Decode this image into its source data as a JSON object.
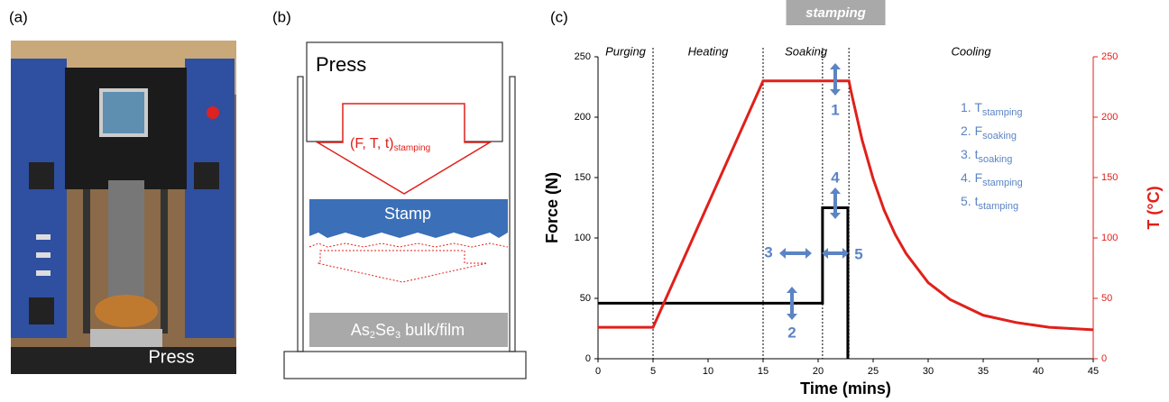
{
  "panel_a": {
    "label": "(a)",
    "caption": "Press"
  },
  "panel_b": {
    "label": "(b)",
    "press": "Press",
    "parameters": {
      "main": "(F, T, t)",
      "sub": "stamping"
    },
    "stamp": "Stamp",
    "sample": [
      "As",
      "2",
      "Se",
      "3",
      " bulk/film"
    ]
  },
  "panel_c": {
    "label": "(c)"
  },
  "chart_data": {
    "type": "line",
    "xlabel": "Time (mins)",
    "ylabel": "Force (N)",
    "y2label": "T (°C)",
    "xlim": [
      0,
      45
    ],
    "xticks": [
      0,
      5,
      10,
      15,
      20,
      25,
      30,
      35,
      40,
      45
    ],
    "ylim": [
      0,
      250
    ],
    "yticks": [
      0,
      50,
      100,
      150,
      200,
      250
    ],
    "y2lim": [
      0,
      250
    ],
    "y2ticks": [
      0,
      50,
      100,
      150,
      200,
      250
    ],
    "series": [
      {
        "color": "#000000",
        "x": [
          0,
          20.4,
          20.4,
          22.7,
          22.7
        ],
        "values": [
          46,
          46,
          125,
          125,
          0
        ]
      },
      {
        "color": "#e0201b",
        "axis": "y2",
        "x": [
          0,
          5,
          15,
          22.8,
          23,
          24,
          25,
          26,
          27,
          28,
          30,
          32,
          35,
          38,
          41,
          45
        ],
        "values": [
          26,
          26,
          230,
          230,
          221,
          181,
          149,
          123,
          103,
          87,
          63,
          49,
          36,
          30,
          26,
          24
        ]
      }
    ],
    "phase_boundaries": [
      5,
      15,
      20.4,
      22.8
    ],
    "phases": [
      "Purging",
      "Heating",
      "Soaking",
      "Cooling"
    ],
    "stamping_label": "stamping",
    "markers": [
      "1",
      "2",
      "3",
      "4",
      "5"
    ],
    "parameter_list": [
      {
        "text": "1. T",
        "sub": "stamping"
      },
      {
        "text": "2. F",
        "sub": "soaking"
      },
      {
        "text": "3. t",
        "sub": "soaking"
      },
      {
        "text": "4. F",
        "sub": "stamping"
      },
      {
        "text": "5. t",
        "sub": "stamping"
      }
    ]
  }
}
